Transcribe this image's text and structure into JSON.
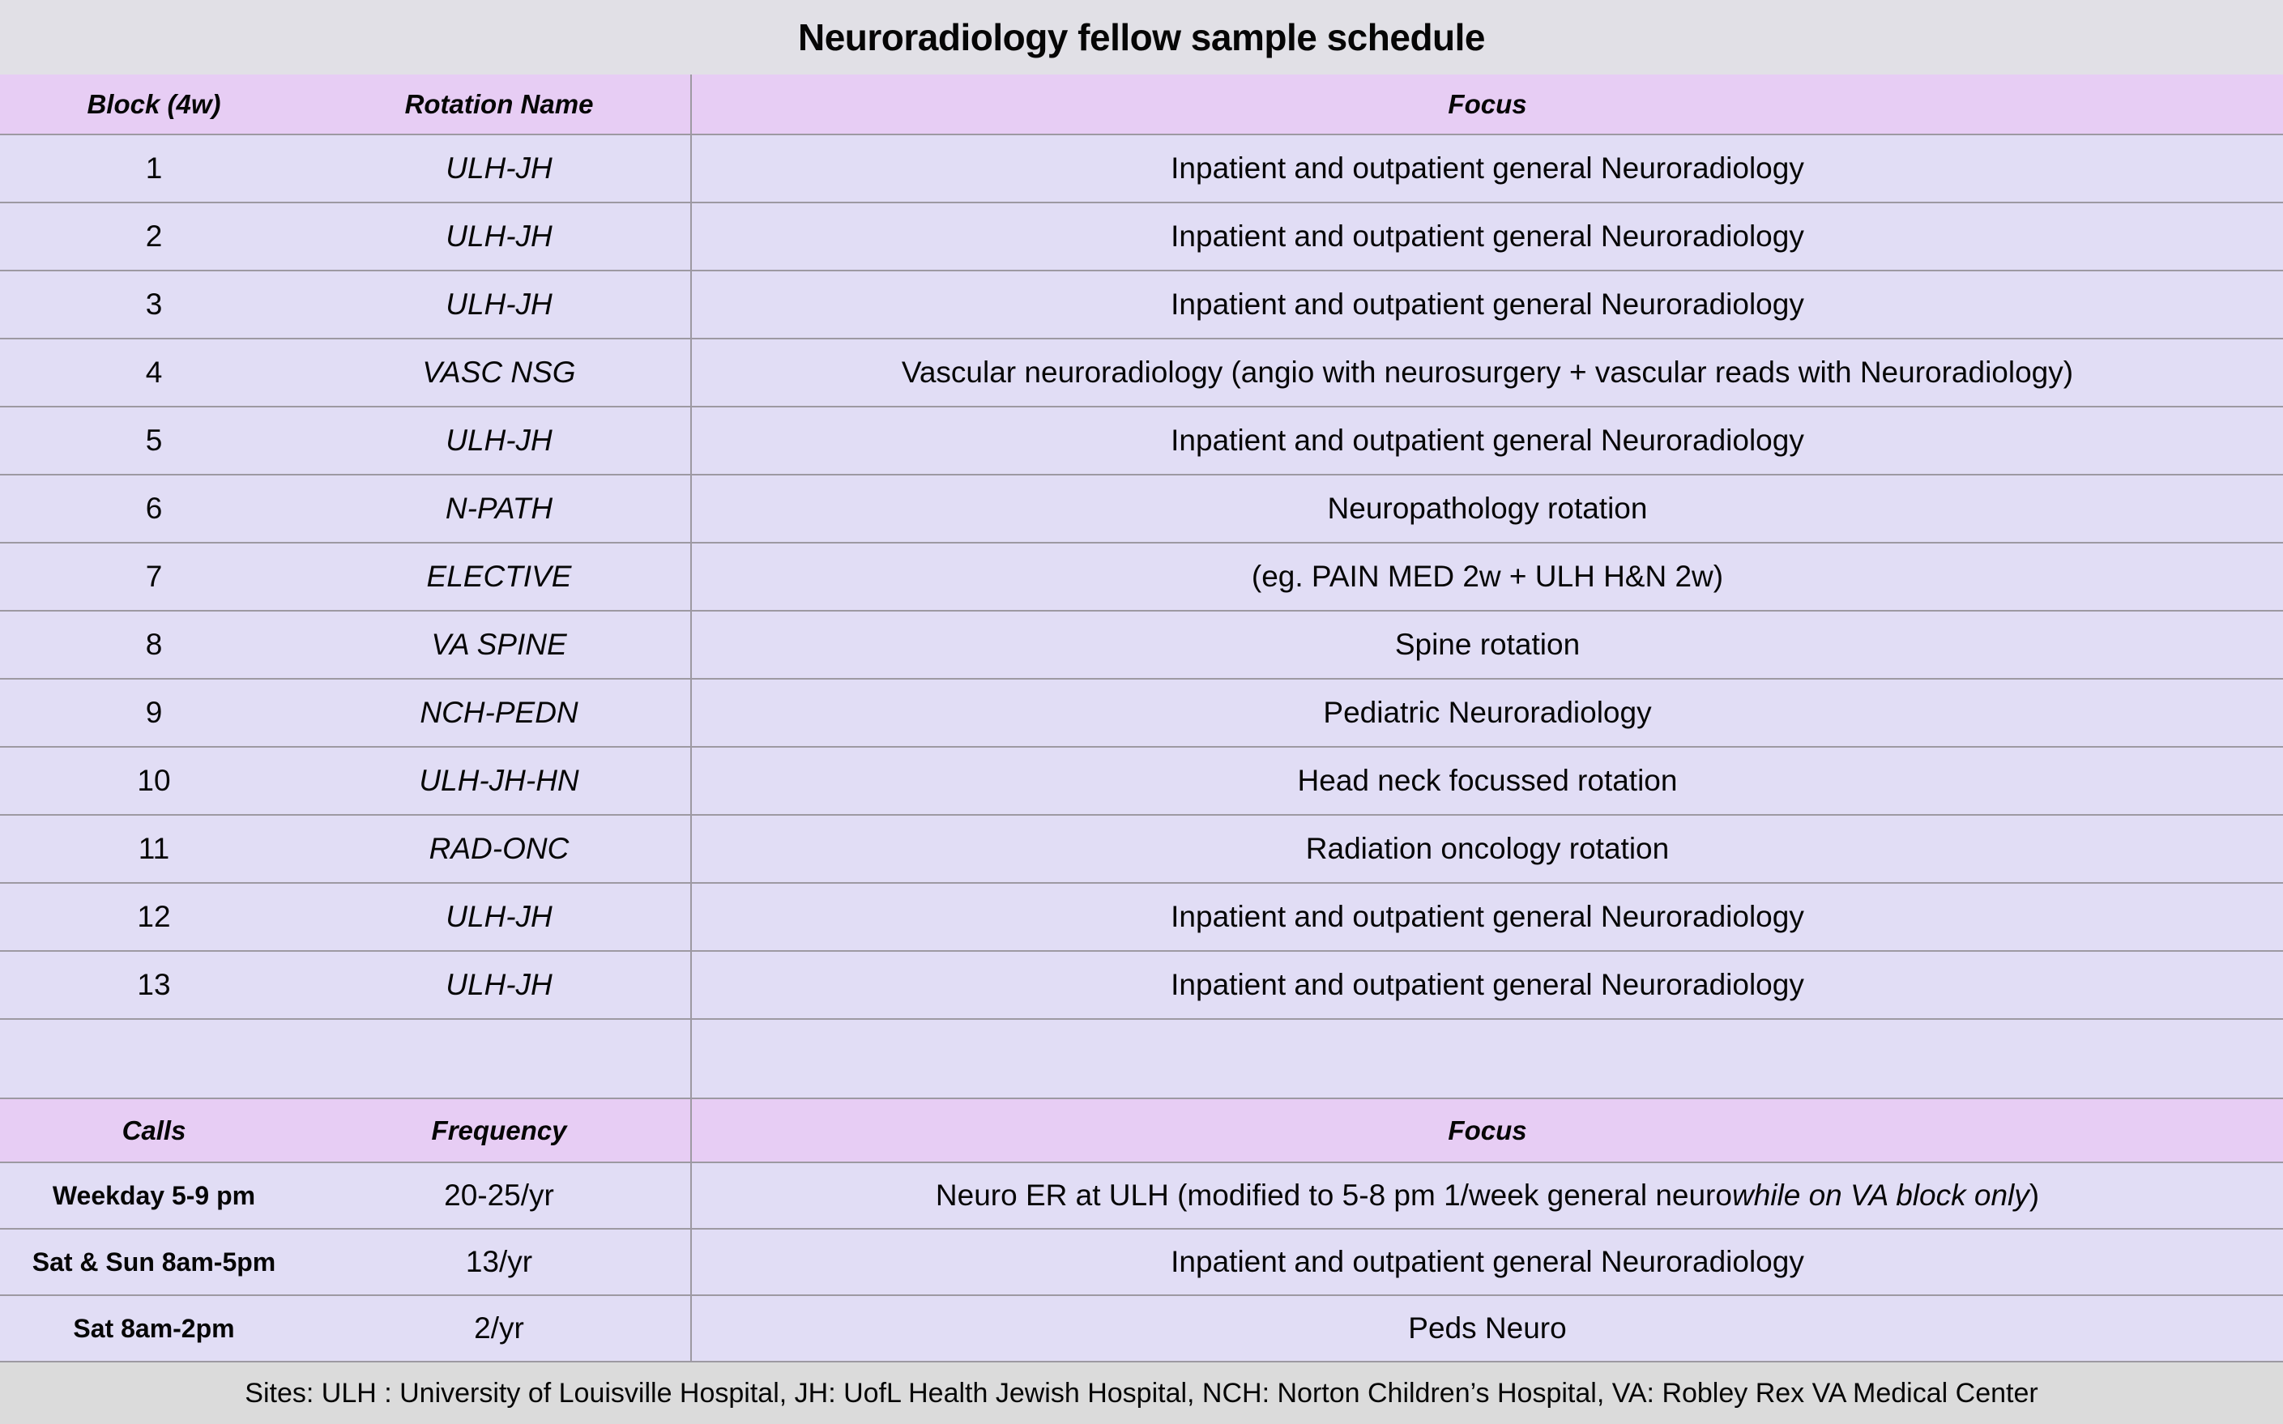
{
  "title": "Neuroradiology fellow sample schedule",
  "colors": {
    "header_pink": "#e7cdf4",
    "row_lavender": "#e1ddf5",
    "title_bar_gray": "#e1e0e6",
    "footer_gray": "#dbdbdb",
    "grid_line": "#9d99a2"
  },
  "schedule_table": {
    "headers": [
      "Block (4w)",
      "Rotation Name",
      "Focus"
    ],
    "rows": [
      {
        "c1": "1",
        "c2": "ULH-JH",
        "focus_pre": "Inpatient and outpatient general Neuroradiology",
        "focus_italic": "",
        "focus_post": ""
      },
      {
        "c1": "2",
        "c2": "ULH-JH",
        "focus_pre": "Inpatient and outpatient general Neuroradiology",
        "focus_italic": "",
        "focus_post": ""
      },
      {
        "c1": "3",
        "c2": "ULH-JH",
        "focus_pre": "Inpatient and outpatient general Neuroradiology",
        "focus_italic": "",
        "focus_post": ""
      },
      {
        "c1": "4",
        "c2": "VASC NSG",
        "focus_pre": "Vascular neuroradiology (angio with neurosurgery + vascular reads with Neuroradiology)",
        "focus_italic": "",
        "focus_post": ""
      },
      {
        "c1": "5",
        "c2": "ULH-JH",
        "focus_pre": "Inpatient and outpatient general Neuroradiology",
        "focus_italic": "",
        "focus_post": ""
      },
      {
        "c1": "6",
        "c2": "N-PATH",
        "focus_pre": "Neuropathology rotation",
        "focus_italic": "",
        "focus_post": ""
      },
      {
        "c1": "7",
        "c2": "ELECTIVE",
        "focus_pre": "(eg. PAIN MED 2w + ULH H&N 2w)",
        "focus_italic": "",
        "focus_post": ""
      },
      {
        "c1": "8",
        "c2": "VA SPINE",
        "focus_pre": "Spine rotation",
        "focus_italic": "",
        "focus_post": ""
      },
      {
        "c1": "9",
        "c2": "NCH-PEDN",
        "focus_pre": "Pediatric Neuroradiology",
        "focus_italic": "",
        "focus_post": ""
      },
      {
        "c1": "10",
        "c2": "ULH-JH-HN",
        "focus_pre": "Head neck focussed rotation",
        "focus_italic": "",
        "focus_post": ""
      },
      {
        "c1": "11",
        "c2": "RAD-ONC",
        "focus_pre": "Radiation oncology rotation",
        "focus_italic": "",
        "focus_post": ""
      },
      {
        "c1": "12",
        "c2": "ULH-JH",
        "focus_pre": "Inpatient and outpatient general Neuroradiology",
        "focus_italic": "",
        "focus_post": ""
      },
      {
        "c1": "13",
        "c2": "ULH-JH",
        "focus_pre": "Inpatient and outpatient general Neuroradiology",
        "focus_italic": "",
        "focus_post": ""
      }
    ]
  },
  "calls_table": {
    "headers": [
      "Calls",
      "Frequency",
      "Focus"
    ],
    "rows": [
      {
        "c1": "Weekday 5-9 pm",
        "c2": "20-25/yr",
        "focus_pre": "Neuro ER at ULH (modified to 5-8 pm 1/week general neuro ",
        "focus_italic": "while on VA block only",
        "focus_post": ")"
      },
      {
        "c1": "Sat & Sun 8am-5pm",
        "c2": "13/yr",
        "focus_pre": "Inpatient and outpatient general Neuroradiology",
        "focus_italic": "",
        "focus_post": ""
      },
      {
        "c1": "Sat 8am-2pm",
        "c2": "2/yr",
        "focus_pre": "Peds Neuro",
        "focus_italic": "",
        "focus_post": ""
      }
    ]
  },
  "footer": "Sites: ULH : University of Louisville Hospital, JH: UofL Health Jewish Hospital, NCH: Norton Children’s Hospital, VA: Robley Rex VA Medical Center"
}
